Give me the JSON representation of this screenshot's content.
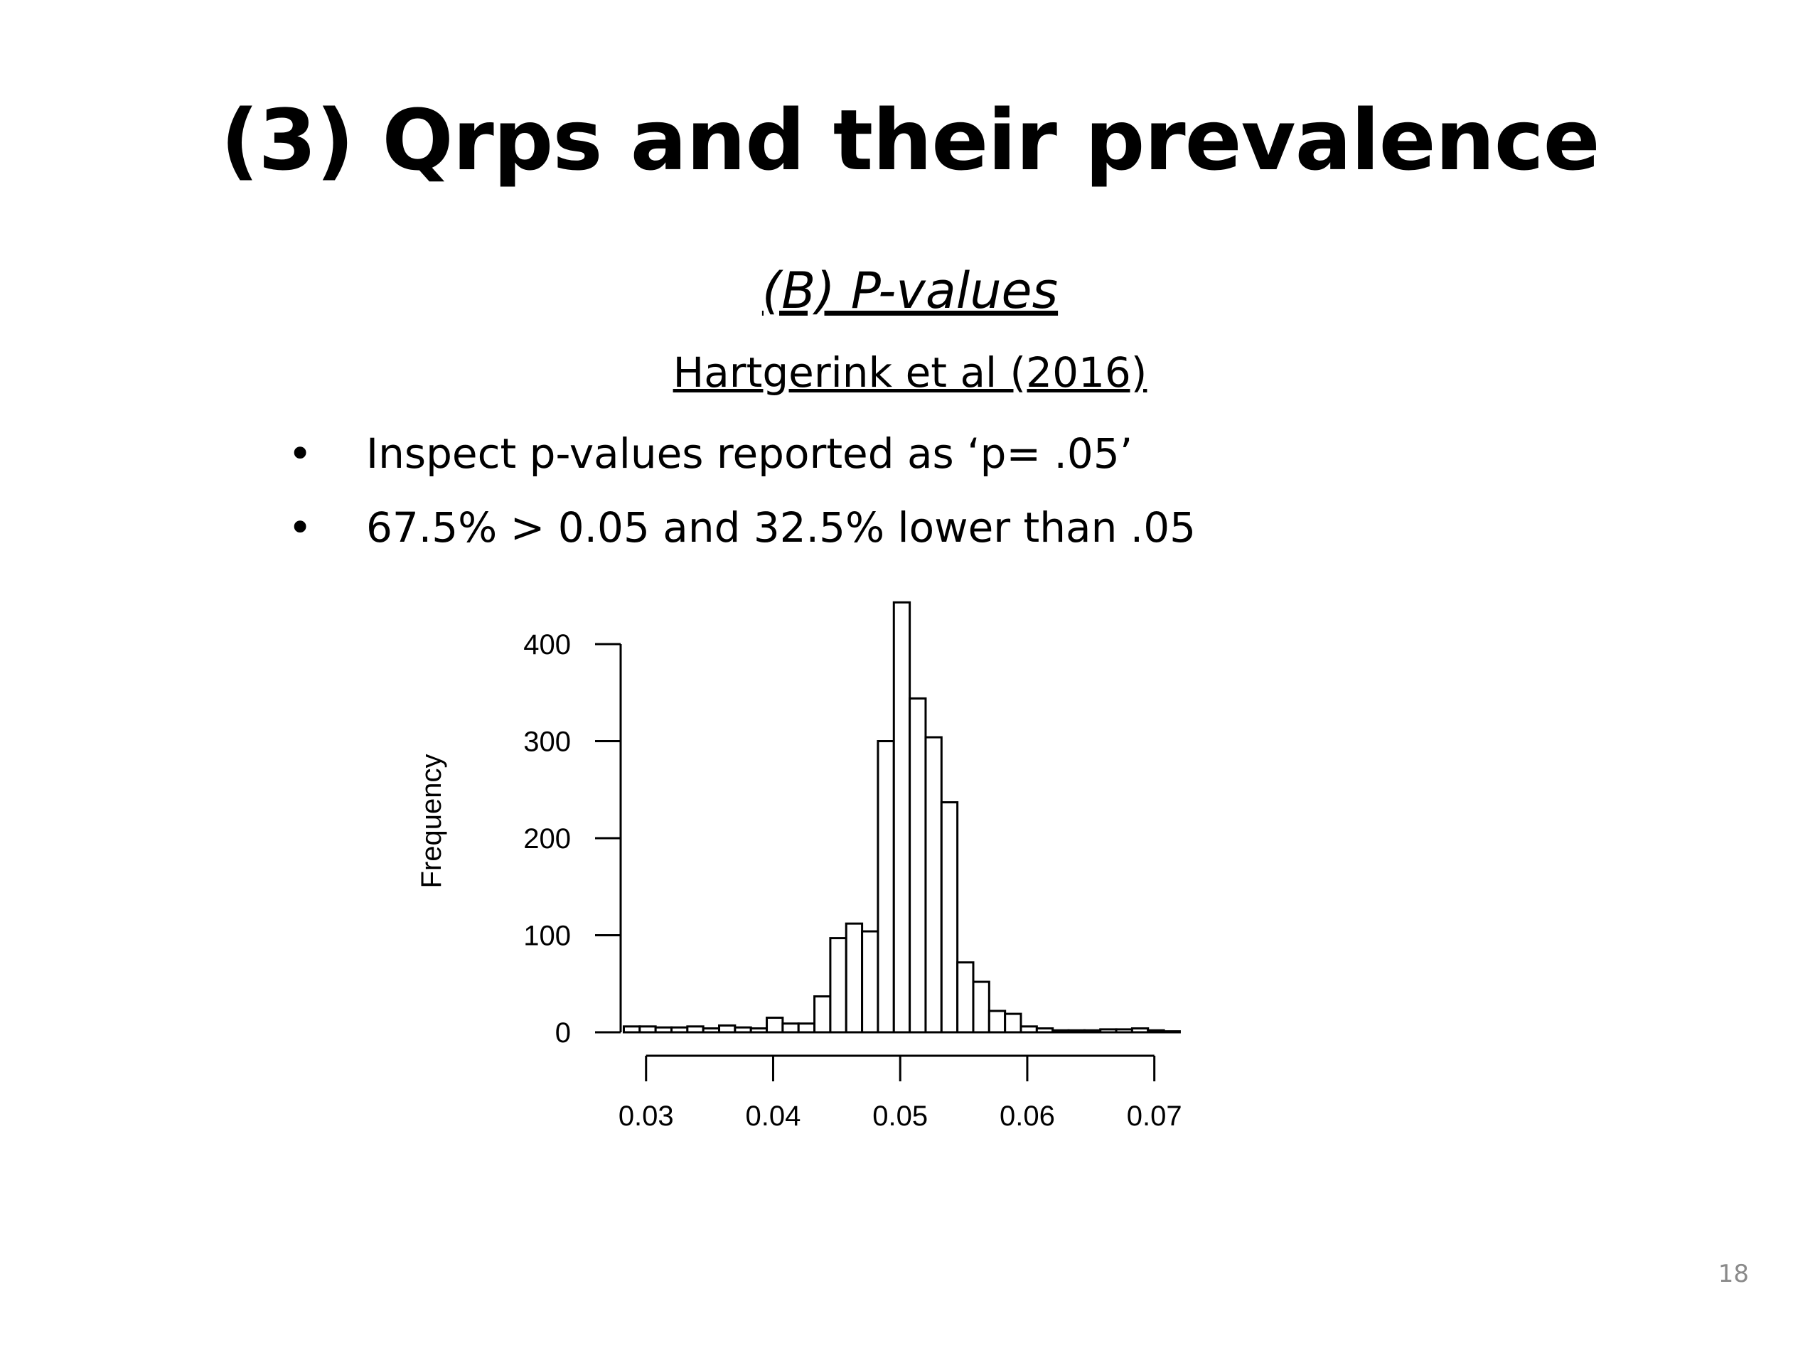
{
  "slide": {
    "title": "(3) Qrps and their prevalence",
    "subtitle": "(B) P-values",
    "reference": "Hartgerink et al (2016)",
    "bullets": [
      "Inspect p-values reported as ‘p= .05’",
      "67.5% > 0.05 and 32.5% lower than .05"
    ],
    "bullet_glyph": "•",
    "page_number": "18"
  },
  "chart_data": {
    "type": "bar",
    "title": "",
    "xlabel": "",
    "ylabel": "Frequency",
    "ylim": [
      0,
      400
    ],
    "xlim": [
      0.028,
      0.0722
    ],
    "y_ticks": [
      "0",
      "100",
      "200",
      "300",
      "400"
    ],
    "x_ticks": [
      "0.03",
      "0.04",
      "0.05",
      "0.06",
      "0.07"
    ],
    "bin_width": 0.00125,
    "bin_starts": [
      0.02825,
      0.0295,
      0.03075,
      0.032,
      0.03325,
      0.0345,
      0.03575,
      0.037,
      0.03825,
      0.0395,
      0.04075,
      0.042,
      0.04325,
      0.0445,
      0.04575,
      0.047,
      0.04825,
      0.0495,
      0.05075,
      0.052,
      0.05325,
      0.0545,
      0.05575,
      0.057,
      0.05825,
      0.0595,
      0.06075,
      0.062,
      0.06325,
      0.0645,
      0.06575,
      0.067,
      0.06825,
      0.0695,
      0.07075
    ],
    "values": [
      6,
      6,
      5,
      5,
      6,
      4,
      7,
      5,
      4,
      15,
      9,
      9,
      37,
      97,
      112,
      104,
      300,
      443,
      344,
      304,
      237,
      72,
      52,
      22,
      19,
      6,
      4,
      2,
      2,
      2,
      3,
      3,
      4,
      2,
      1
    ],
    "grid": false,
    "colors": {
      "bar_fill": "#ffffff",
      "bar_stroke": "#000000"
    }
  }
}
